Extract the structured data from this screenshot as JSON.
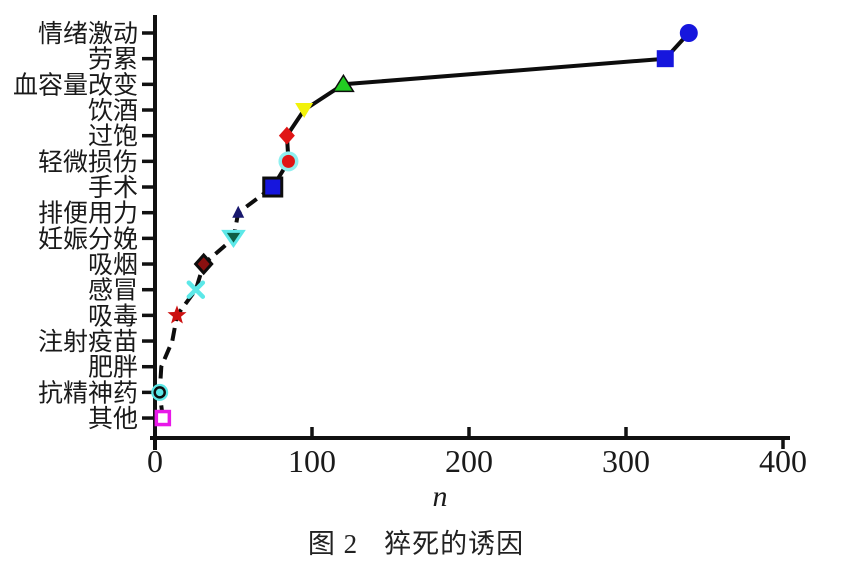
{
  "figure": {
    "caption_prefix": "图 2",
    "caption_title": "猝死的诱因",
    "caption": "图 2  猝死的诱因",
    "xlabel": "n"
  },
  "chart_data": {
    "type": "scatter",
    "title": "图 2  猝死的诱因",
    "xlabel": "n",
    "ylabel": "",
    "xlim": [
      0,
      400
    ],
    "xticks": [
      0,
      100,
      200,
      300,
      400
    ],
    "grid": false,
    "legend": "none",
    "categories": [
      "情绪激动",
      "劳累",
      "血容量改变",
      "饮酒",
      "过饱",
      "轻微损伤",
      "手术",
      "排便用力",
      "妊娠分娩",
      "吸烟",
      "感冒",
      "吸毒",
      "注射疫苗",
      "肥胖",
      "抗精神药",
      "其他"
    ],
    "values": [
      340,
      325,
      120,
      95,
      84,
      85,
      75,
      53,
      50,
      31,
      26,
      14,
      11,
      4,
      3,
      5
    ],
    "connector_line": {
      "color": "#0d0d0d",
      "width": 4,
      "style_upper": "solid",
      "style_lower": "dashed",
      "dash": [
        13,
        7
      ],
      "dashed_from_index": 6
    },
    "points": [
      {
        "label": "情绪激动",
        "n": 340,
        "marker": "circle",
        "fill": "#1616dd"
      },
      {
        "label": "劳累",
        "n": 325,
        "marker": "square",
        "fill": "#1616dd"
      },
      {
        "label": "血容量改变",
        "n": 120,
        "marker": "triangle-up",
        "fill": "#22cc22",
        "stroke": "#0d0d0d"
      },
      {
        "label": "饮酒",
        "n": 95,
        "marker": "triangle-down",
        "fill": "#f2f20a"
      },
      {
        "label": "过饱",
        "n": 84,
        "marker": "diamond",
        "fill": "#e01515"
      },
      {
        "label": "轻微损伤",
        "n": 85,
        "marker": "circle-halo",
        "fill": "#e01515",
        "halo": "#8ff0f0"
      },
      {
        "label": "手术",
        "n": 75,
        "marker": "square-bordered",
        "fill": "#1616dd",
        "stroke": "#0d0d0d"
      },
      {
        "label": "排便用力",
        "n": 53,
        "marker": "triangle-up-small",
        "fill": "#18186e"
      },
      {
        "label": "妊娠分娩",
        "n": 50,
        "marker": "triangle-down-open",
        "fill": "#0f5f46",
        "stroke": "#5ce8e8"
      },
      {
        "label": "吸烟",
        "n": 31,
        "marker": "diamond-bordered",
        "fill": "#8b1010",
        "stroke": "#0d0d0d"
      },
      {
        "label": "感冒",
        "n": 26,
        "marker": "x-cross",
        "stroke": "#5ce8e8"
      },
      {
        "label": "吸毒",
        "n": 14,
        "marker": "star",
        "fill": "#cc1111"
      },
      {
        "label": "注射疫苗",
        "n": 11,
        "marker": "none"
      },
      {
        "label": "肥胖",
        "n": 4,
        "marker": "none"
      },
      {
        "label": "抗精神药",
        "n": 3,
        "marker": "circle-ring",
        "fill": "#5ce8e8",
        "stroke": "#0d0d0d"
      },
      {
        "label": "其他",
        "n": 5,
        "marker": "open-square",
        "fill": "#ffffff",
        "stroke": "#e818e8"
      }
    ]
  },
  "colors": {
    "axis": "#111111",
    "text": "#1a1a1a",
    "background": "#ffffff"
  }
}
